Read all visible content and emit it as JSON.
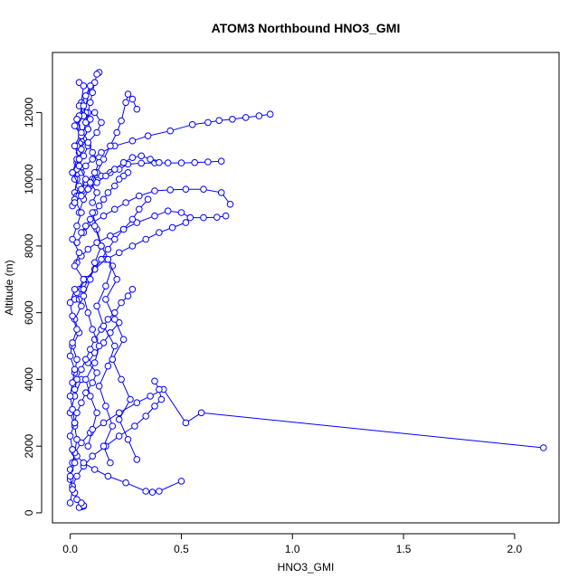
{
  "chart_data": {
    "type": "line",
    "title": "ATOM3 Northbound HNO3_GMI",
    "xlabel": "HNO3_GMI",
    "ylabel": "Altitude (m)",
    "xlim": [
      -0.08,
      2.2
    ],
    "ylim": [
      -300,
      13800
    ],
    "xticks": [
      0.0,
      0.5,
      1.0,
      1.5,
      2.0
    ],
    "xtick_labels": [
      "0.0",
      "0.5",
      "1.0",
      "1.5",
      "2.0"
    ],
    "yticks": [
      0,
      2000,
      4000,
      6000,
      8000,
      10000,
      12000
    ],
    "ytick_labels": [
      "0",
      "2000",
      "4000",
      "6000",
      "8000",
      "10000",
      "12000"
    ],
    "grid": false,
    "color": "#0000ff",
    "marker": "open-circle",
    "series": [
      {
        "x": [
          0.9,
          0.85,
          0.79,
          0.73,
          0.67,
          0.62,
          0.55,
          0.45,
          0.35,
          0.28,
          0.2,
          0.14,
          0.1,
          0.07,
          0.05,
          0.03,
          0.02,
          0.01
        ],
        "y": [
          11950,
          11900,
          11850,
          11800,
          11760,
          11700,
          11640,
          11450,
          11300,
          11150,
          11000,
          10800,
          10600,
          10400,
          10200,
          10000,
          9600,
          9200
        ]
      },
      {
        "x": [
          0.68,
          0.62,
          0.56,
          0.5,
          0.44,
          0.38,
          0.32,
          0.26,
          0.22,
          0.18,
          0.14,
          0.1,
          0.07,
          0.05,
          0.03,
          0.02
        ],
        "y": [
          10540,
          10520,
          10500,
          10490,
          10490,
          10490,
          10480,
          10450,
          10300,
          10200,
          10100,
          10000,
          9900,
          9700,
          9500,
          9300
        ]
      },
      {
        "x": [
          0.7,
          0.66,
          0.6,
          0.54,
          0.5,
          0.44,
          0.38,
          0.3,
          0.24,
          0.18,
          0.12,
          0.08,
          0.05,
          0.03
        ],
        "y": [
          8900,
          8860,
          8850,
          8850,
          9000,
          9050,
          8900,
          8700,
          8500,
          8300,
          8100,
          7900,
          7700,
          7500
        ]
      },
      {
        "x": [
          0.72,
          0.68,
          0.6,
          0.52,
          0.45,
          0.38,
          0.31,
          0.25,
          0.2,
          0.15,
          0.1,
          0.06,
          0.03
        ],
        "y": [
          9250,
          9600,
          9700,
          9700,
          9680,
          9650,
          9500,
          9300,
          9100,
          8900,
          8700,
          8400,
          8100
        ]
      },
      {
        "x": [
          0.52,
          0.46,
          0.4,
          0.34,
          0.28,
          0.22,
          0.16,
          0.11,
          0.07,
          0.04,
          0.02
        ],
        "y": [
          8700,
          8550,
          8400,
          8200,
          8000,
          7800,
          7600,
          7300,
          7000,
          6700,
          6400
        ]
      },
      {
        "x": [
          2.13,
          0.59,
          0.52,
          0.42,
          0.36,
          0.3,
          0.22,
          0.15,
          0.09,
          0.05,
          0.02
        ],
        "y": [
          1950,
          3000,
          2700,
          3700,
          3500,
          3300,
          3000,
          2700,
          2400,
          2100,
          1800
        ]
      },
      {
        "x": [
          0.38,
          0.4,
          0.41,
          0.38,
          0.34,
          0.29,
          0.22,
          0.16,
          0.1,
          0.06,
          0.03,
          0.01
        ],
        "y": [
          3950,
          3700,
          3400,
          3200,
          2900,
          2600,
          2300,
          2000,
          1700,
          1400,
          1100,
          800
        ]
      },
      {
        "x": [
          0.5,
          0.4,
          0.37,
          0.34,
          0.25,
          0.17,
          0.11,
          0.06,
          0.03,
          0.01
        ],
        "y": [
          950,
          650,
          620,
          650,
          900,
          1100,
          1300,
          1500,
          1700,
          1900
        ]
      },
      {
        "x": [
          0.06,
          0.05,
          0.04,
          0.06,
          0.05,
          0.03,
          0.02,
          0.01,
          0.0,
          0.0,
          0.01,
          0.02,
          0.03,
          0.02,
          0.0,
          0.02,
          0.05
        ],
        "y": [
          200,
          180,
          160,
          220,
          300,
          400,
          600,
          800,
          1000,
          1300,
          1500,
          1800,
          2200,
          2600,
          3000,
          3500,
          4000
        ]
      },
      {
        "x": [
          0.13,
          0.12,
          0.11,
          0.1,
          0.09,
          0.08,
          0.07,
          0.06,
          0.05,
          0.04,
          0.03
        ],
        "y": [
          13200,
          13150,
          12900,
          12600,
          12300,
          12000,
          11700,
          11400,
          11100,
          10800,
          10500
        ]
      },
      {
        "x": [
          0.3,
          0.28,
          0.26,
          0.25,
          0.23,
          0.21,
          0.18,
          0.15,
          0.12,
          0.09,
          0.06,
          0.04
        ],
        "y": [
          12100,
          12400,
          12550,
          12300,
          11750,
          11400,
          11000,
          10600,
          10200,
          9800,
          9400,
          9000
        ]
      },
      {
        "x": [
          0.04,
          0.06,
          0.05,
          0.07,
          0.09,
          0.08,
          0.06,
          0.05,
          0.04,
          0.03,
          0.02
        ],
        "y": [
          12900,
          12800,
          12300,
          12000,
          11800,
          11500,
          11200,
          10900,
          10600,
          10300,
          10000
        ]
      },
      {
        "x": [
          0.22,
          0.18,
          0.15,
          0.11,
          0.08,
          0.12,
          0.1,
          0.07,
          0.05,
          0.03,
          0.02
        ],
        "y": [
          5700,
          5400,
          5100,
          4800,
          4500,
          4200,
          3900,
          3600,
          3300,
          3000,
          2700
        ]
      },
      {
        "x": [
          0.28,
          0.26,
          0.23,
          0.2,
          0.17,
          0.14,
          0.11,
          0.09,
          0.07,
          0.05,
          0.03,
          0.02
        ],
        "y": [
          6700,
          6500,
          6300,
          6000,
          5800,
          5500,
          5200,
          4900,
          4600,
          4300,
          4000,
          3700
        ]
      },
      {
        "x": [
          0.35,
          0.31,
          0.28,
          0.24,
          0.2,
          0.17,
          0.14,
          0.11,
          0.08,
          0.06,
          0.04
        ],
        "y": [
          9400,
          9100,
          8800,
          8500,
          8200,
          7900,
          7600,
          7300,
          7000,
          6700,
          6400
        ]
      },
      {
        "x": [
          0.26,
          0.24,
          0.22,
          0.2,
          0.17,
          0.15,
          0.13,
          0.11,
          0.09,
          0.07,
          0.05
        ],
        "y": [
          10200,
          10100,
          10000,
          9800,
          9600,
          9400,
          9200,
          9000,
          8800,
          8600,
          8400
        ]
      },
      {
        "x": [
          0.02,
          0.03,
          0.01,
          0.04,
          0.02,
          0.05,
          0.03,
          0.06,
          0.02,
          0.04,
          0.01,
          0.03,
          0.05,
          0.02,
          0.04,
          0.01,
          0.03
        ],
        "y": [
          4200,
          4600,
          5000,
          5400,
          5800,
          6200,
          6600,
          7000,
          7400,
          7800,
          8200,
          8600,
          9000,
          9400,
          9800,
          10200,
          10600
        ]
      },
      {
        "x": [
          0.0,
          0.01,
          0.0,
          0.02,
          0.01,
          0.0,
          0.02,
          0.01,
          0.0,
          0.01,
          0.02,
          0.0,
          0.01,
          0.03,
          0.01,
          0.0,
          0.02
        ],
        "y": [
          300,
          700,
          1100,
          1500,
          1900,
          2300,
          2700,
          3100,
          3500,
          3900,
          4300,
          4700,
          5100,
          5500,
          5900,
          6300,
          6700
        ]
      },
      {
        "x": [
          0.08,
          0.1,
          0.12,
          0.09,
          0.07,
          0.11,
          0.13,
          0.1,
          0.08,
          0.06,
          0.09,
          0.11,
          0.14,
          0.12,
          0.1
        ],
        "y": [
          2000,
          2500,
          3000,
          3500,
          4000,
          4500,
          5000,
          5500,
          6000,
          6500,
          7000,
          7500,
          8000,
          8500,
          9000
        ]
      },
      {
        "x": [
          0.18,
          0.15,
          0.19,
          0.16,
          0.13,
          0.17,
          0.2,
          0.15,
          0.12,
          0.16,
          0.19,
          0.14,
          0.11
        ],
        "y": [
          1500,
          2000,
          2600,
          3200,
          3800,
          4400,
          5000,
          5600,
          6200,
          6800,
          7400,
          8000,
          8600
        ]
      },
      {
        "x": [
          0.3,
          0.26,
          0.22,
          0.27,
          0.23,
          0.19,
          0.24,
          0.2,
          0.16,
          0.21,
          0.17
        ],
        "y": [
          1600,
          2200,
          2800,
          3400,
          4000,
          4600,
          5200,
          5800,
          6400,
          7000,
          7600
        ]
      },
      {
        "x": [
          0.05,
          0.07,
          0.04,
          0.06,
          0.08,
          0.05,
          0.03,
          0.06,
          0.04,
          0.07,
          0.09,
          0.06
        ],
        "y": [
          9700,
          10000,
          10400,
          10700,
          11000,
          11300,
          11600,
          11900,
          12200,
          12500,
          12800,
          11900
        ]
      },
      {
        "x": [
          0.1,
          0.12,
          0.09,
          0.11,
          0.13,
          0.1,
          0.08,
          0.12,
          0.14,
          0.11
        ],
        "y": [
          9300,
          9600,
          9900,
          10200,
          10500,
          10800,
          11100,
          11400,
          11700,
          12000
        ]
      },
      {
        "x": [
          0.4,
          0.36,
          0.32,
          0.28,
          0.24,
          0.2,
          0.16,
          0.12,
          0.08,
          0.05,
          0.02
        ],
        "y": [
          10500,
          10600,
          10700,
          10650,
          10500,
          10300,
          10100,
          9900,
          9700,
          9500,
          9300
        ]
      },
      {
        "x": [
          0.03,
          0.05,
          0.02,
          0.04,
          0.06,
          0.03,
          0.05,
          0.02,
          0.04,
          0.01
        ],
        "y": [
          11000,
          11300,
          11600,
          11900,
          12200,
          11800,
          11400,
          11000,
          10600,
          10200
        ]
      }
    ]
  }
}
